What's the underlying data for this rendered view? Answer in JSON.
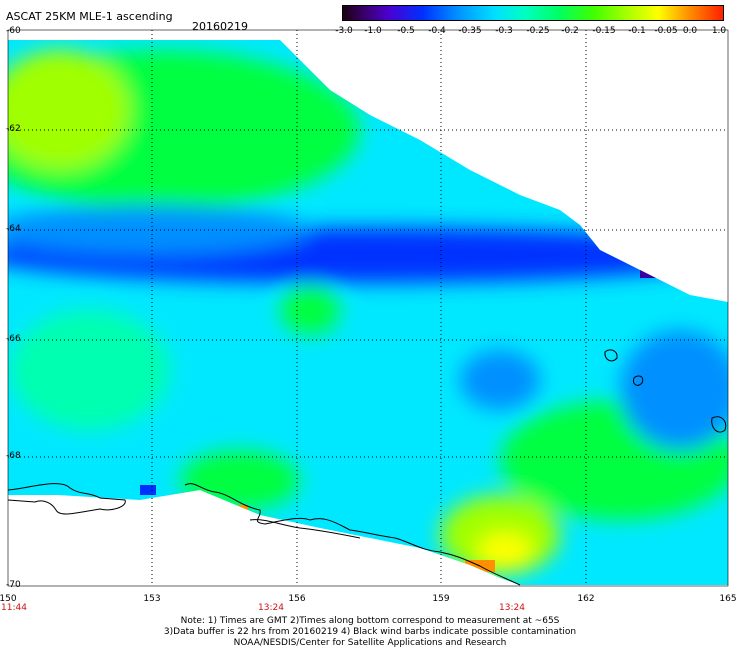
{
  "header": {
    "title": "ASCAT 25KM MLE-1 ascending",
    "date": "20160219"
  },
  "legend": {
    "ticks": [
      "-3.0",
      "-1.0",
      "-0.5",
      "-0.4",
      "-0.35",
      "-0.3",
      "-0.25",
      "-0.2",
      "-0.15",
      "-0.1",
      "-0.05",
      "0.0",
      "1.0"
    ]
  },
  "map": {
    "lat_labels": [
      "-60",
      "-62",
      "-64",
      "-66",
      "-68",
      "-70"
    ],
    "lon_labels": [
      "150",
      "153",
      "156",
      "159",
      "162",
      "165"
    ],
    "time_labels": [
      "11:44",
      "13:24",
      "13:24"
    ],
    "colors": {
      "deep_blue": "#0030ff",
      "blue": "#0090ff",
      "cyan": "#00e8ff",
      "aqua_green": "#00ffb0",
      "green": "#00ff40",
      "yellow_green": "#a0ff00",
      "yellow": "#ffff00",
      "orange": "#ff9000",
      "purple": "#3a00a0"
    }
  },
  "footer": {
    "line1": "Note: 1) Times are GMT 2)Times along bottom correspond to measurement at ~65S",
    "line2": "3)Data buffer is 22 hrs from 20160219 4) Black wind barbs indicate possible contamination",
    "line3": "NOAA/NESDIS/Center for Satellite Applications and Research"
  }
}
